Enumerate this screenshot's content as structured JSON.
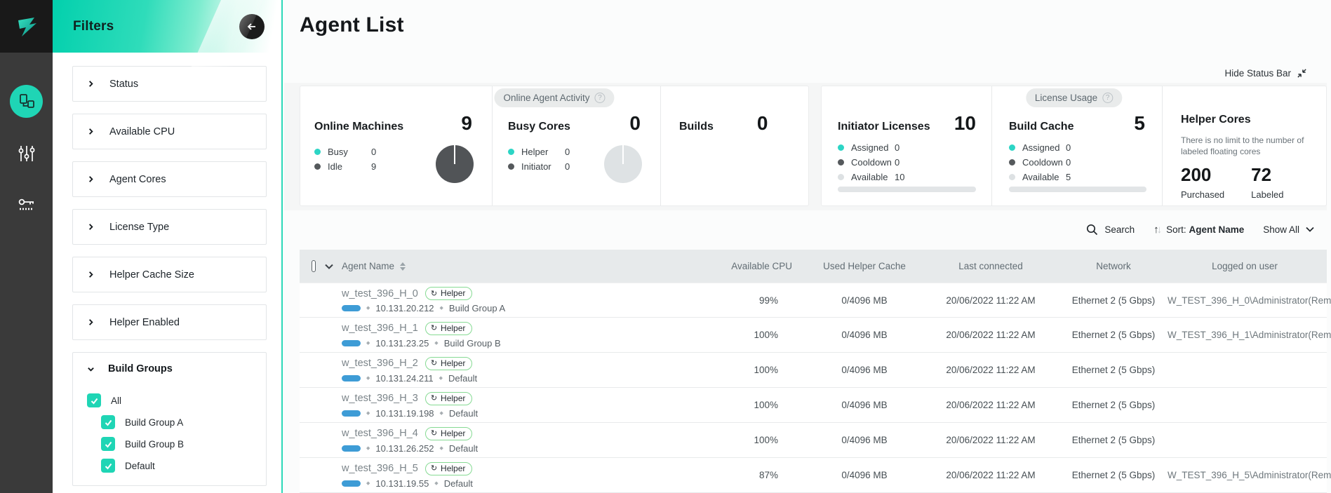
{
  "colors": {
    "accent": "#1fd5b5",
    "teal_dot": "#2cd5c5",
    "dark_dot": "#55595c",
    "light_dot": "#dde1e3",
    "donut_dark": "#515457",
    "donut_light": "#dee2e4",
    "blue_pill": "#3e9cd6",
    "badge_green": "#86da93"
  },
  "sidebar": {
    "icons": [
      {
        "name": "agents-icon",
        "active": true
      },
      {
        "name": "settings-sliders-icon",
        "active": false
      },
      {
        "name": "license-key-icon",
        "active": false
      }
    ]
  },
  "filters": {
    "title": "Filters",
    "sections": [
      "Status",
      "Available CPU",
      "Agent Cores",
      "License Type",
      "Helper Cache Size",
      "Helper Enabled"
    ],
    "build_groups": {
      "label": "Build Groups",
      "options": [
        {
          "label": "All",
          "checked": true,
          "child": false
        },
        {
          "label": "Build Group A",
          "checked": true,
          "child": true
        },
        {
          "label": "Build Group B",
          "checked": true,
          "child": true
        },
        {
          "label": "Default",
          "checked": true,
          "child": true
        }
      ]
    }
  },
  "page": {
    "title": "Agent List",
    "hide_status_bar": "Hide Status Bar"
  },
  "status": {
    "activity": {
      "badge": "Online Agent Activity",
      "machines": {
        "label": "Online Machines",
        "value": "9",
        "donut_color": "#515457",
        "legend": [
          {
            "label": "Busy",
            "value": "0",
            "color": "#2cd5c5"
          },
          {
            "label": "Idle",
            "value": "9",
            "color": "#55595c"
          }
        ]
      },
      "busy_cores": {
        "label": "Busy Cores",
        "value": "0",
        "donut_color": "#dee2e4",
        "legend": [
          {
            "label": "Helper",
            "value": "0",
            "color": "#2cd5c5"
          },
          {
            "label": "Initiator",
            "value": "0",
            "color": "#55595c"
          }
        ]
      },
      "builds": {
        "label": "Builds",
        "value": "0"
      }
    },
    "license": {
      "badge": "License Usage",
      "initiator": {
        "label": "Initiator Licenses",
        "value": "10",
        "legend": [
          {
            "label": "Assigned",
            "value": "0",
            "color": "#2cd5c5"
          },
          {
            "label": "Cooldown",
            "value": "0",
            "color": "#55595c"
          },
          {
            "label": "Available",
            "value": "10",
            "color": "#dde1e3"
          }
        ]
      },
      "build_cache": {
        "label": "Build Cache",
        "value": "5",
        "legend": [
          {
            "label": "Assigned",
            "value": "0",
            "color": "#2cd5c5"
          },
          {
            "label": "Cooldown",
            "value": "0",
            "color": "#55595c"
          },
          {
            "label": "Available",
            "value": "5",
            "color": "#dde1e3"
          }
        ]
      },
      "helper_cores": {
        "label": "Helper Cores",
        "note": "There is no limit to the number of labeled floating cores",
        "purchased_value": "200",
        "purchased_label": "Purchased",
        "labeled_value": "72",
        "labeled_label": "Labeled"
      }
    }
  },
  "toolbar": {
    "search": "Search",
    "sort_label": "Sort:",
    "sort_value": "Agent Name",
    "show_all": "Show All"
  },
  "table": {
    "columns": [
      "Agent Name",
      "Available CPU",
      "Used Helper Cache",
      "Last connected",
      "Network",
      "Logged on user"
    ],
    "rows": [
      {
        "name": "w_test_396_H_0",
        "badge": "Helper",
        "ip": "10.131.20.212",
        "group": "Build Group A",
        "cpu": "99%",
        "cache": "0/4096 MB",
        "last_connected": "20/06/2022 11:22 AM",
        "network": "Ethernet 2 (5 Gbps)",
        "user": "W_TEST_396_H_0\\Administrator(Rem"
      },
      {
        "name": "w_test_396_H_1",
        "badge": "Helper",
        "ip": "10.131.23.25",
        "group": "Build Group B",
        "cpu": "100%",
        "cache": "0/4096 MB",
        "last_connected": "20/06/2022 11:22 AM",
        "network": "Ethernet 2 (5 Gbps)",
        "user": "W_TEST_396_H_1\\Administrator(Rem"
      },
      {
        "name": "w_test_396_H_2",
        "badge": "Helper",
        "ip": "10.131.24.211",
        "group": "Default",
        "cpu": "100%",
        "cache": "0/4096 MB",
        "last_connected": "20/06/2022 11:22 AM",
        "network": "Ethernet 2 (5 Gbps)",
        "user": ""
      },
      {
        "name": "w_test_396_H_3",
        "badge": "Helper",
        "ip": "10.131.19.198",
        "group": "Default",
        "cpu": "100%",
        "cache": "0/4096 MB",
        "last_connected": "20/06/2022 11:22 AM",
        "network": "Ethernet 2 (5 Gbps)",
        "user": ""
      },
      {
        "name": "w_test_396_H_4",
        "badge": "Helper",
        "ip": "10.131.26.252",
        "group": "Default",
        "cpu": "100%",
        "cache": "0/4096 MB",
        "last_connected": "20/06/2022 11:22 AM",
        "network": "Ethernet 2 (5 Gbps)",
        "user": ""
      },
      {
        "name": "w_test_396_H_5",
        "badge": "Helper",
        "ip": "10.131.19.55",
        "group": "Default",
        "cpu": "87%",
        "cache": "0/4096 MB",
        "last_connected": "20/06/2022 11:22 AM",
        "network": "Ethernet 2 (5 Gbps)",
        "user": "W_TEST_396_H_5\\Administrator(Rem"
      }
    ]
  }
}
